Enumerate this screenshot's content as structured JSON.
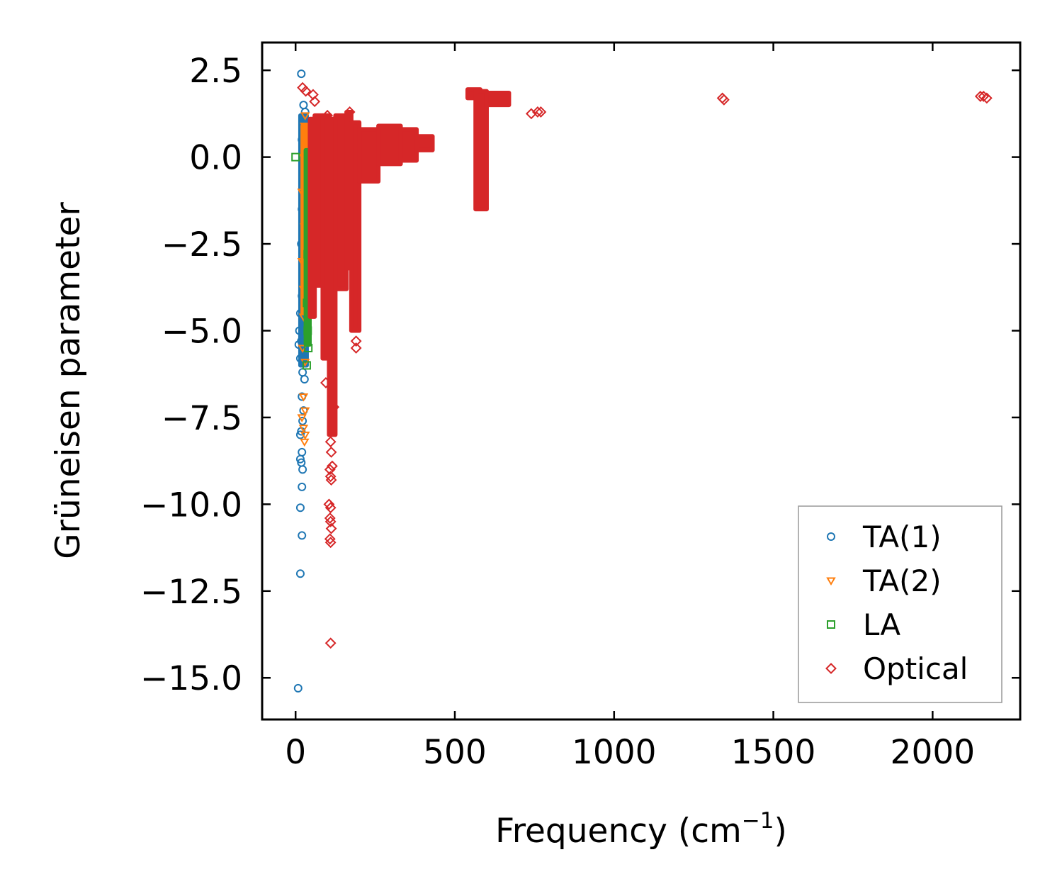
{
  "chart_data": {
    "type": "scatter",
    "xlabel": "Frequency (cm",
    "xlabel_superscript": "−1",
    "xlabel_suffix": ")",
    "ylabel": "Grüneisen parameter",
    "xlim": [
      -105,
      2275
    ],
    "ylim": [
      -16.2,
      3.3
    ],
    "xticks": [
      0,
      500,
      1000,
      1500,
      2000
    ],
    "xtick_labels": [
      "0",
      "500",
      "1000",
      "1500",
      "2000"
    ],
    "yticks": [
      2.5,
      0.0,
      -2.5,
      -5.0,
      -7.5,
      -10.0,
      -12.5,
      -15.0
    ],
    "ytick_labels": [
      "2.5",
      "0.0",
      "−2.5",
      "−5.0",
      "−7.5",
      "−10.0",
      "−12.5",
      "−15.0"
    ],
    "legend_position": "lower right",
    "series": [
      {
        "name": "TA(1)",
        "marker": "circle",
        "color": "#1f77b4",
        "points": [
          [
            18,
            2.4
          ],
          [
            25,
            1.5
          ],
          [
            30,
            1.3
          ],
          [
            28,
            1.1
          ],
          [
            35,
            0.8
          ],
          [
            20,
            0.5
          ],
          [
            30,
            0.3
          ],
          [
            25,
            0.0
          ],
          [
            28,
            -0.3
          ],
          [
            22,
            -0.6
          ],
          [
            30,
            -1.0
          ],
          [
            20,
            -1.5
          ],
          [
            25,
            -2.0
          ],
          [
            18,
            -2.5
          ],
          [
            22,
            -3.0
          ],
          [
            30,
            -3.5
          ],
          [
            20,
            -4.0
          ],
          [
            25,
            -4.3
          ],
          [
            15,
            -4.5
          ],
          [
            12,
            -5.0
          ],
          [
            18,
            -5.3
          ],
          [
            10,
            -5.4
          ],
          [
            15,
            -5.8
          ],
          [
            22,
            -6.2
          ],
          [
            28,
            -6.4
          ],
          [
            20,
            -6.9
          ],
          [
            25,
            -7.3
          ],
          [
            22,
            -7.6
          ],
          [
            18,
            -7.9
          ],
          [
            15,
            -8.0
          ],
          [
            20,
            -8.5
          ],
          [
            15,
            -8.7
          ],
          [
            18,
            -8.8
          ],
          [
            22,
            -9.0
          ],
          [
            20,
            -9.5
          ],
          [
            15,
            -10.1
          ],
          [
            20,
            -10.9
          ],
          [
            15,
            -12.0
          ],
          [
            8,
            -15.3
          ]
        ],
        "bands": [
          [
            [
              15,
              -6.0
            ],
            [
              35,
              -6.0
            ],
            [
              35,
              1.2
            ],
            [
              15,
              1.2
            ]
          ],
          [
            [
              18,
              -4.2
            ],
            [
              38,
              -4.2
            ],
            [
              38,
              0.8
            ],
            [
              18,
              0.8
            ]
          ]
        ]
      },
      {
        "name": "TA(2)",
        "marker": "triangle_down",
        "color": "#ff7f0e",
        "points": [
          [
            30,
            1.2
          ],
          [
            28,
            0.9
          ],
          [
            25,
            0.0
          ],
          [
            20,
            -1.0
          ],
          [
            28,
            -2.0
          ],
          [
            20,
            -3.0
          ],
          [
            25,
            -3.8
          ],
          [
            30,
            -4.0
          ],
          [
            25,
            -4.6
          ],
          [
            22,
            -5.5
          ],
          [
            30,
            -5.9
          ],
          [
            25,
            -6.9
          ],
          [
            30,
            -7.3
          ],
          [
            20,
            -7.5
          ],
          [
            25,
            -7.8
          ],
          [
            30,
            -8.0
          ],
          [
            28,
            -8.2
          ]
        ],
        "bands": [
          [
            [
              22,
              -4.5
            ],
            [
              34,
              -4.5
            ],
            [
              34,
              0.9
            ],
            [
              22,
              0.9
            ]
          ]
        ]
      },
      {
        "name": "LA",
        "marker": "square",
        "color": "#2ca02c",
        "points": [
          [
            0,
            0.0
          ],
          [
            38,
            -2.8
          ],
          [
            40,
            -3.5
          ],
          [
            36,
            -4.2
          ],
          [
            38,
            -5.0
          ],
          [
            40,
            -5.5
          ],
          [
            35,
            -6.0
          ],
          [
            42,
            -0.5
          ]
        ],
        "bands": [
          [
            [
              32,
              -5.4
            ],
            [
              44,
              -5.4
            ],
            [
              44,
              0.2
            ],
            [
              32,
              0.2
            ]
          ]
        ]
      },
      {
        "name": "Optical",
        "marker": "diamond",
        "color": "#d62728",
        "points": [
          [
            22,
            2.0
          ],
          [
            32,
            1.9
          ],
          [
            55,
            1.8
          ],
          [
            60,
            1.6
          ],
          [
            100,
            1.2
          ],
          [
            110,
            -8.2
          ],
          [
            112,
            -8.5
          ],
          [
            115,
            -8.9
          ],
          [
            108,
            -9.0
          ],
          [
            110,
            -9.2
          ],
          [
            112,
            -9.3
          ],
          [
            105,
            -10.0
          ],
          [
            110,
            -10.1
          ],
          [
            108,
            -10.4
          ],
          [
            110,
            -10.5
          ],
          [
            112,
            -10.7
          ],
          [
            108,
            -11.0
          ],
          [
            110,
            -11.1
          ],
          [
            110,
            -14.0
          ],
          [
            120,
            -7.2
          ],
          [
            95,
            -6.5
          ],
          [
            190,
            -5.3
          ],
          [
            190,
            -5.5
          ],
          [
            170,
            1.3
          ],
          [
            740,
            1.25
          ],
          [
            760,
            1.3
          ],
          [
            770,
            1.3
          ],
          [
            1340,
            1.7
          ],
          [
            1345,
            1.65
          ],
          [
            2150,
            1.75
          ],
          [
            2160,
            1.75
          ],
          [
            2170,
            1.7
          ]
        ],
        "bands": [
          [
            [
              45,
              -4.6
            ],
            [
              60,
              -4.6
            ],
            [
              60,
              1.1
            ],
            [
              45,
              1.1
            ]
          ],
          [
            [
              60,
              -3.7
            ],
            [
              85,
              -3.7
            ],
            [
              85,
              1.2
            ],
            [
              60,
              1.2
            ]
          ],
          [
            [
              85,
              -5.8
            ],
            [
              105,
              -5.8
            ],
            [
              105,
              1.2
            ],
            [
              85,
              1.2
            ]
          ],
          [
            [
              105,
              -8.0
            ],
            [
              125,
              -8.0
            ],
            [
              125,
              1.1
            ],
            [
              105,
              1.1
            ]
          ],
          [
            [
              125,
              -3.8
            ],
            [
              160,
              -3.8
            ],
            [
              160,
              1.2
            ],
            [
              125,
              1.2
            ]
          ],
          [
            [
              160,
              -3.2
            ],
            [
              175,
              -3.2
            ],
            [
              175,
              1.3
            ],
            [
              160,
              1.3
            ]
          ],
          [
            [
              175,
              -5.0
            ],
            [
              200,
              -5.0
            ],
            [
              200,
              1.0
            ],
            [
              175,
              1.0
            ]
          ],
          [
            [
              200,
              -0.7
            ],
            [
              260,
              -0.7
            ],
            [
              260,
              0.8
            ],
            [
              200,
              0.8
            ]
          ],
          [
            [
              260,
              -0.2
            ],
            [
              330,
              -0.2
            ],
            [
              330,
              0.9
            ],
            [
              260,
              0.9
            ]
          ],
          [
            [
              330,
              -0.1
            ],
            [
              380,
              -0.1
            ],
            [
              380,
              0.8
            ],
            [
              330,
              0.8
            ]
          ],
          [
            [
              380,
              0.2
            ],
            [
              430,
              0.2
            ],
            [
              430,
              0.6
            ],
            [
              380,
              0.6
            ]
          ],
          [
            [
              540,
              1.7
            ],
            [
              580,
              1.7
            ],
            [
              580,
              1.95
            ],
            [
              540,
              1.95
            ]
          ],
          [
            [
              565,
              -1.5
            ],
            [
              600,
              -1.5
            ],
            [
              600,
              1.9
            ],
            [
              565,
              1.9
            ]
          ],
          [
            [
              600,
              1.5
            ],
            [
              670,
              1.5
            ],
            [
              670,
              1.85
            ],
            [
              600,
              1.85
            ]
          ]
        ]
      }
    ]
  }
}
